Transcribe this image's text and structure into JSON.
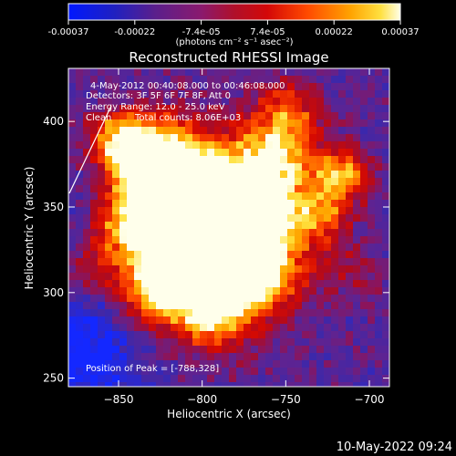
{
  "colorbar": {
    "tick_labels": [
      "-0.00037",
      "-0.00022",
      "-7.4e-05",
      "7.4e-05",
      "0.00022",
      "0.00037"
    ],
    "unit_label": "(photons cm⁻² s⁻¹ asec⁻²)"
  },
  "image": {
    "title": "Reconstructed RHESSI Image",
    "info_time": "4-May-2012 00:40:08.000 to 00:46:08.000",
    "info_detectors": "Detectors: 3F 5F 6F 7F 8F, Att 0",
    "info_energy": "Energy Range: 12.0 - 25.0 keV",
    "info_clean": "Clean",
    "info_counts": "Total counts: 8.06E+03",
    "peak_position": "Position of Peak = [-788,328]",
    "x_axis_label": "Heliocentric X (arcsec)",
    "y_axis_label": "Heliocentric Y (arcsec)",
    "x_ticks": [
      {
        "value": -850,
        "label": "−850"
      },
      {
        "value": -800,
        "label": "−800"
      },
      {
        "value": -750,
        "label": "−750"
      },
      {
        "value": -700,
        "label": "−700"
      }
    ],
    "y_ticks": [
      {
        "value": 250,
        "label": "250"
      },
      {
        "value": 300,
        "label": "300"
      },
      {
        "value": 350,
        "label": "350"
      },
      {
        "value": 400,
        "label": "400"
      }
    ],
    "x_range": [
      -880,
      -688
    ],
    "y_range": [
      245,
      431
    ]
  },
  "footer": {
    "timestamp": "10-May-2022 09:24"
  }
}
